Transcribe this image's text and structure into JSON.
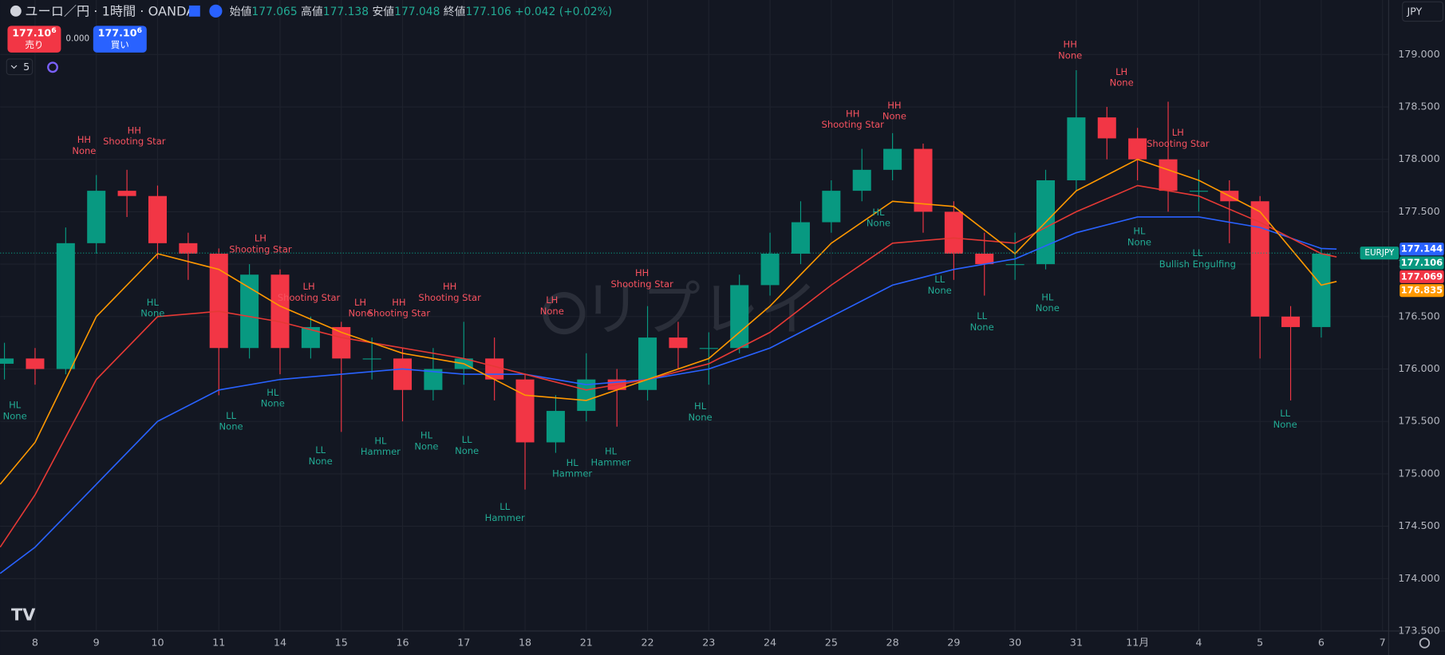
{
  "header": {
    "symbol": "ユーロ／円 · 1時間 · OANDA",
    "ohlc": [
      {
        "label": "始値",
        "value": "177.065"
      },
      {
        "label": "高値",
        "value": "177.138"
      },
      {
        "label": "安値",
        "value": "177.048"
      },
      {
        "label": "終値",
        "value": "177.106"
      }
    ],
    "change": "+0.042 (+0.02%)"
  },
  "trade": {
    "sell": {
      "price": "177.10",
      "pip": "6",
      "label": "売り"
    },
    "spread": "0.000",
    "buy": {
      "price": "177.10",
      "pip": "6",
      "label": "買い"
    }
  },
  "indicator_count": "5",
  "currency": "JPY",
  "watermark": "リプレイ",
  "chart_data": {
    "type": "candlestick",
    "xlim": [
      -0.57,
      22.1
    ],
    "ylim": [
      173.5,
      179.52
    ],
    "grid": true,
    "up_color": "#089981",
    "down_color": "#f23645",
    "high_color": "#f7525f",
    "low_color": "#22ab94",
    "xticks": [
      {
        "value": 0,
        "label": "8"
      },
      {
        "value": 1,
        "label": "9"
      },
      {
        "value": 2,
        "label": "10"
      },
      {
        "value": 3,
        "label": "11"
      },
      {
        "value": 4,
        "label": "14"
      },
      {
        "value": 5,
        "label": "15"
      },
      {
        "value": 6,
        "label": "16"
      },
      {
        "value": 7,
        "label": "17"
      },
      {
        "value": 8,
        "label": "18"
      },
      {
        "value": 9,
        "label": "21"
      },
      {
        "value": 10,
        "label": "22"
      },
      {
        "value": 11,
        "label": "23"
      },
      {
        "value": 12,
        "label": "24"
      },
      {
        "value": 13,
        "label": "25"
      },
      {
        "value": 14,
        "label": "28"
      },
      {
        "value": 15,
        "label": "29"
      },
      {
        "value": 16,
        "label": "30"
      },
      {
        "value": 17,
        "label": "31"
      },
      {
        "value": 18,
        "label": "11月"
      },
      {
        "value": 19,
        "label": "4"
      },
      {
        "value": 20,
        "label": "5"
      },
      {
        "value": 21,
        "label": "6"
      },
      {
        "value": 22,
        "label": "7"
      }
    ],
    "yticks": [
      {
        "value": 173.5,
        "label": "173.500"
      },
      {
        "value": 174,
        "label": "174.000"
      },
      {
        "value": 174.5,
        "label": "174.500"
      },
      {
        "value": 175,
        "label": "175.000"
      },
      {
        "value": 175.5,
        "label": "175.500"
      },
      {
        "value": 176,
        "label": "176.000"
      },
      {
        "value": 176.5,
        "label": "176.500"
      },
      {
        "value": 177,
        "label": "177.000"
      },
      {
        "value": 177.5,
        "label": "177.500"
      },
      {
        "value": 178,
        "label": "178.000"
      },
      {
        "value": 178.5,
        "label": "178.500"
      },
      {
        "value": 179,
        "label": "179.000"
      }
    ],
    "candles": {
      "x": [
        -0.5,
        0,
        0.5,
        1,
        1.5,
        2,
        2.5,
        3,
        3.5,
        4,
        4.5,
        5,
        5.5,
        6,
        6.5,
        7,
        7.5,
        8,
        8.5,
        9,
        9.5,
        10,
        10.5,
        11,
        11.5,
        12,
        12.5,
        13,
        13.5,
        14,
        14.5,
        15,
        15.5,
        16,
        16.5,
        17,
        17.5,
        18,
        18.5,
        19,
        19.5,
        20,
        20.5,
        21
      ],
      "open": [
        176.05,
        176.1,
        176.0,
        177.2,
        177.7,
        177.65,
        177.2,
        177.1,
        176.2,
        176.9,
        176.2,
        176.4,
        176.1,
        176.1,
        175.8,
        176.0,
        176.1,
        175.9,
        175.3,
        175.6,
        175.9,
        175.8,
        176.3,
        176.2,
        176.2,
        176.8,
        177.1,
        177.4,
        177.7,
        177.9,
        178.1,
        177.5,
        177.1,
        177.0,
        177.0,
        177.8,
        178.4,
        178.2,
        178.0,
        177.7,
        177.7,
        177.6,
        176.5,
        176.4
      ],
      "high": [
        176.25,
        176.2,
        177.35,
        177.85,
        177.9,
        177.75,
        177.3,
        177.15,
        177.0,
        176.95,
        176.5,
        176.45,
        176.3,
        176.2,
        176.2,
        176.45,
        176.3,
        175.95,
        175.75,
        176.15,
        176.0,
        176.6,
        176.45,
        176.35,
        176.9,
        177.3,
        177.6,
        177.8,
        178.1,
        178.25,
        178.15,
        177.6,
        177.3,
        177.3,
        177.9,
        178.85,
        178.5,
        178.3,
        178.55,
        177.9,
        177.8,
        177.65,
        176.6,
        177.15
      ],
      "low": [
        175.9,
        175.85,
        175.95,
        177.1,
        177.45,
        177.05,
        176.85,
        175.75,
        176.1,
        175.95,
        176.1,
        175.4,
        175.9,
        175.5,
        175.7,
        175.85,
        175.7,
        174.85,
        175.2,
        175.5,
        175.45,
        175.7,
        176.0,
        175.85,
        176.15,
        176.7,
        177.0,
        177.3,
        177.6,
        177.8,
        177.3,
        176.85,
        176.7,
        176.85,
        176.95,
        177.7,
        178.0,
        177.8,
        177.5,
        177.5,
        177.2,
        176.1,
        175.7,
        176.3
      ],
      "close": [
        176.1,
        176.0,
        177.2,
        177.7,
        177.65,
        177.2,
        177.1,
        176.2,
        176.9,
        176.2,
        176.4,
        176.1,
        176.1,
        175.8,
        176.0,
        176.1,
        175.9,
        175.3,
        175.6,
        175.9,
        175.8,
        176.3,
        176.2,
        176.2,
        176.8,
        177.1,
        177.4,
        177.7,
        177.9,
        178.1,
        177.5,
        177.1,
        177.0,
        177.0,
        177.8,
        178.4,
        178.2,
        178.0,
        177.7,
        177.7,
        177.6,
        176.5,
        176.4,
        177.1
      ]
    },
    "moving_averages": [
      {
        "color": "#2962ff",
        "x": [
          -0.57,
          0,
          1,
          2,
          3,
          4,
          5,
          6,
          7,
          8,
          9,
          10,
          11,
          12,
          13,
          14,
          15,
          16,
          17,
          18,
          19,
          20,
          21,
          21.25
        ],
        "values": [
          174.05,
          174.3,
          174.9,
          175.5,
          175.8,
          175.9,
          175.95,
          176.0,
          175.95,
          175.95,
          175.85,
          175.9,
          176.0,
          176.2,
          176.5,
          176.8,
          176.95,
          177.05,
          177.3,
          177.45,
          177.45,
          177.35,
          177.15,
          177.144
        ]
      },
      {
        "color": "#e53935",
        "x": [
          -0.57,
          0,
          1,
          2,
          3,
          4,
          5,
          6,
          7,
          8,
          9,
          10,
          11,
          12,
          13,
          14,
          15,
          16,
          17,
          18,
          19,
          20,
          21,
          21.25
        ],
        "values": [
          174.3,
          174.8,
          175.9,
          176.5,
          176.55,
          176.45,
          176.3,
          176.2,
          176.1,
          175.95,
          175.8,
          175.9,
          176.05,
          176.35,
          176.8,
          177.2,
          177.25,
          177.2,
          177.5,
          177.75,
          177.65,
          177.4,
          177.1,
          177.069
        ]
      },
      {
        "color": "#ff9800",
        "x": [
          -0.57,
          0,
          1,
          2,
          3,
          4,
          5,
          6,
          7,
          8,
          9,
          10,
          11,
          12,
          13,
          14,
          15,
          16,
          17,
          18,
          19,
          20,
          21,
          21.25
        ],
        "values": [
          174.9,
          175.3,
          176.5,
          177.1,
          176.95,
          176.6,
          176.35,
          176.15,
          176.05,
          175.75,
          175.7,
          175.9,
          176.1,
          176.6,
          177.2,
          177.6,
          177.55,
          177.1,
          177.7,
          178.0,
          177.8,
          177.5,
          176.8,
          176.835
        ]
      }
    ],
    "last_price": {
      "symbol": "EURJPY",
      "value": 177.106,
      "color": "#089981"
    },
    "price_tags": [
      {
        "value": 177.144,
        "color": "#2962ff"
      },
      {
        "value": 177.106,
        "color": "#089981"
      },
      {
        "value": 177.069,
        "color": "#f23645"
      },
      {
        "value": 176.835,
        "color": "#ff9800"
      }
    ],
    "annotations": [
      {
        "kind": "high",
        "x": 0.8,
        "price": 178.13,
        "lines": [
          "HH",
          "None"
        ]
      },
      {
        "kind": "high",
        "x": 1.62,
        "price": 178.22,
        "lines": [
          "HH",
          "Shooting Star"
        ]
      },
      {
        "kind": "high",
        "x": 3.68,
        "price": 177.19,
        "lines": [
          "LH",
          "Shooting Star"
        ]
      },
      {
        "kind": "high",
        "x": 4.47,
        "price": 176.73,
        "lines": [
          "LH",
          "Shooting Star"
        ]
      },
      {
        "kind": "high",
        "x": 5.31,
        "price": 176.58,
        "lines": [
          "LH",
          "None"
        ]
      },
      {
        "kind": "high",
        "x": 5.94,
        "price": 176.58,
        "lines": [
          "HH",
          "Shooting Star"
        ]
      },
      {
        "kind": "high",
        "x": 6.77,
        "price": 176.73,
        "lines": [
          "HH",
          "Shooting Star"
        ]
      },
      {
        "kind": "high",
        "x": 8.44,
        "price": 176.6,
        "lines": [
          "LH",
          "None"
        ]
      },
      {
        "kind": "high",
        "x": 9.91,
        "price": 176.86,
        "lines": [
          "HH",
          "Shooting Star"
        ]
      },
      {
        "kind": "high",
        "x": 13.35,
        "price": 178.38,
        "lines": [
          "HH",
          "Shooting Star"
        ]
      },
      {
        "kind": "high",
        "x": 14.03,
        "price": 178.46,
        "lines": [
          "HH",
          "None"
        ]
      },
      {
        "kind": "high",
        "x": 16.9,
        "price": 179.04,
        "lines": [
          "HH",
          "None"
        ]
      },
      {
        "kind": "high",
        "x": 17.74,
        "price": 178.78,
        "lines": [
          "LH",
          "None"
        ]
      },
      {
        "kind": "high",
        "x": 18.66,
        "price": 178.2,
        "lines": [
          "LH",
          "Shooting Star"
        ]
      },
      {
        "kind": "low",
        "x": -0.33,
        "price": 175.6,
        "lines": [
          "HL",
          "None"
        ]
      },
      {
        "kind": "low",
        "x": 1.92,
        "price": 176.58,
        "lines": [
          "HL",
          "None"
        ]
      },
      {
        "kind": "low",
        "x": 3.2,
        "price": 175.5,
        "lines": [
          "LL",
          "None"
        ]
      },
      {
        "kind": "low",
        "x": 3.88,
        "price": 175.72,
        "lines": [
          "HL",
          "None"
        ]
      },
      {
        "kind": "low",
        "x": 4.66,
        "price": 175.17,
        "lines": [
          "LL",
          "None"
        ]
      },
      {
        "kind": "low",
        "x": 5.64,
        "price": 175.26,
        "lines": [
          "HL",
          "Hammer"
        ]
      },
      {
        "kind": "low",
        "x": 6.39,
        "price": 175.31,
        "lines": [
          "HL",
          "None"
        ]
      },
      {
        "kind": "low",
        "x": 7.05,
        "price": 175.27,
        "lines": [
          "LL",
          "None"
        ]
      },
      {
        "kind": "low",
        "x": 7.67,
        "price": 174.63,
        "lines": [
          "LL",
          "Hammer"
        ]
      },
      {
        "kind": "low",
        "x": 8.77,
        "price": 175.05,
        "lines": [
          "HL",
          "Hammer"
        ]
      },
      {
        "kind": "low",
        "x": 9.4,
        "price": 175.16,
        "lines": [
          "HL",
          "Hammer"
        ]
      },
      {
        "kind": "low",
        "x": 10.86,
        "price": 175.59,
        "lines": [
          "HL",
          "None"
        ]
      },
      {
        "kind": "low",
        "x": 13.77,
        "price": 177.44,
        "lines": [
          "HL",
          "None"
        ]
      },
      {
        "kind": "low",
        "x": 14.77,
        "price": 176.8,
        "lines": [
          "LL",
          "None"
        ]
      },
      {
        "kind": "low",
        "x": 15.46,
        "price": 176.45,
        "lines": [
          "LL",
          "None"
        ]
      },
      {
        "kind": "low",
        "x": 16.53,
        "price": 176.63,
        "lines": [
          "HL",
          "None"
        ]
      },
      {
        "kind": "low",
        "x": 18.03,
        "price": 177.26,
        "lines": [
          "HL",
          "None"
        ]
      },
      {
        "kind": "low",
        "x": 18.98,
        "price": 177.05,
        "lines": [
          "LL",
          "Bullish Engulfing"
        ]
      },
      {
        "kind": "low",
        "x": 20.41,
        "price": 175.52,
        "lines": [
          "LL",
          "None"
        ]
      }
    ]
  }
}
